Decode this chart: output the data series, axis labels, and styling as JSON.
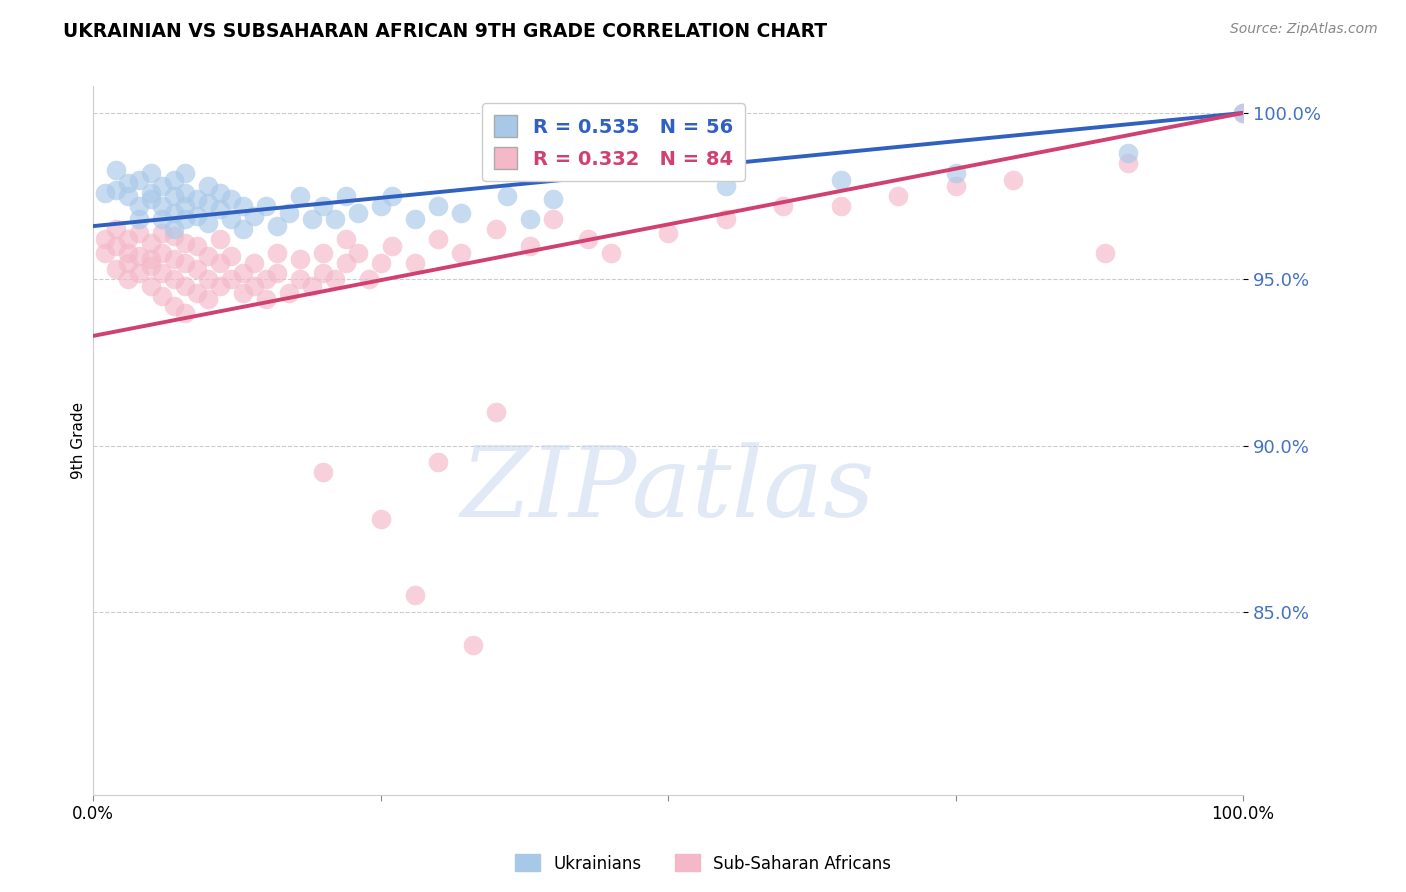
{
  "title": "UKRAINIAN VS SUBSAHARAN AFRICAN 9TH GRADE CORRELATION CHART",
  "source": "Source: ZipAtlas.com",
  "ylabel": "9th Grade",
  "xlim": [
    0.0,
    1.0
  ],
  "ylim": [
    0.795,
    1.008
  ],
  "yticks": [
    0.85,
    0.9,
    0.95,
    1.0
  ],
  "ytick_labels": [
    "85.0%",
    "90.0%",
    "95.0%",
    "100.0%"
  ],
  "blue_color": "#a8c8e8",
  "pink_color": "#f4b8c8",
  "blue_line_color": "#3060c0",
  "pink_line_color": "#d04070",
  "legend_blue_label": "R = 0.535   N = 56",
  "legend_pink_label": "R = 0.332   N = 84",
  "watermark": "ZIPatlas",
  "blue_scatter_x": [
    0.01,
    0.02,
    0.02,
    0.03,
    0.03,
    0.04,
    0.04,
    0.04,
    0.05,
    0.05,
    0.05,
    0.06,
    0.06,
    0.06,
    0.07,
    0.07,
    0.07,
    0.07,
    0.08,
    0.08,
    0.08,
    0.08,
    0.09,
    0.09,
    0.1,
    0.1,
    0.1,
    0.11,
    0.11,
    0.12,
    0.12,
    0.13,
    0.13,
    0.14,
    0.15,
    0.16,
    0.17,
    0.18,
    0.19,
    0.2,
    0.21,
    0.22,
    0.23,
    0.25,
    0.26,
    0.28,
    0.3,
    0.32,
    0.36,
    0.38,
    0.4,
    0.55,
    0.65,
    0.75,
    0.9,
    1.0
  ],
  "blue_scatter_y": [
    0.976,
    0.983,
    0.977,
    0.979,
    0.975,
    0.972,
    0.98,
    0.968,
    0.974,
    0.982,
    0.976,
    0.968,
    0.972,
    0.978,
    0.965,
    0.97,
    0.975,
    0.98,
    0.972,
    0.968,
    0.976,
    0.982,
    0.974,
    0.969,
    0.973,
    0.967,
    0.978,
    0.971,
    0.976,
    0.968,
    0.974,
    0.972,
    0.965,
    0.969,
    0.972,
    0.966,
    0.97,
    0.975,
    0.968,
    0.972,
    0.968,
    0.975,
    0.97,
    0.972,
    0.975,
    0.968,
    0.972,
    0.97,
    0.975,
    0.968,
    0.974,
    0.978,
    0.98,
    0.982,
    0.988,
    1.0
  ],
  "pink_scatter_x": [
    0.01,
    0.01,
    0.02,
    0.02,
    0.02,
    0.03,
    0.03,
    0.03,
    0.03,
    0.04,
    0.04,
    0.04,
    0.05,
    0.05,
    0.05,
    0.05,
    0.06,
    0.06,
    0.06,
    0.06,
    0.07,
    0.07,
    0.07,
    0.07,
    0.08,
    0.08,
    0.08,
    0.08,
    0.09,
    0.09,
    0.09,
    0.1,
    0.1,
    0.1,
    0.11,
    0.11,
    0.11,
    0.12,
    0.12,
    0.13,
    0.13,
    0.14,
    0.14,
    0.15,
    0.15,
    0.16,
    0.16,
    0.17,
    0.18,
    0.18,
    0.19,
    0.2,
    0.2,
    0.21,
    0.22,
    0.22,
    0.23,
    0.24,
    0.25,
    0.26,
    0.28,
    0.3,
    0.32,
    0.35,
    0.38,
    0.4,
    0.43,
    0.45,
    0.5,
    0.55,
    0.6,
    0.65,
    0.7,
    0.75,
    0.8,
    0.88,
    0.9,
    0.35,
    0.3,
    0.2,
    0.25,
    0.28,
    0.33,
    1.0
  ],
  "pink_scatter_y": [
    0.962,
    0.958,
    0.965,
    0.96,
    0.953,
    0.958,
    0.955,
    0.95,
    0.962,
    0.957,
    0.964,
    0.952,
    0.956,
    0.961,
    0.948,
    0.954,
    0.952,
    0.958,
    0.964,
    0.945,
    0.95,
    0.956,
    0.963,
    0.942,
    0.948,
    0.955,
    0.961,
    0.94,
    0.946,
    0.953,
    0.96,
    0.944,
    0.95,
    0.957,
    0.948,
    0.955,
    0.962,
    0.95,
    0.957,
    0.946,
    0.952,
    0.948,
    0.955,
    0.944,
    0.95,
    0.952,
    0.958,
    0.946,
    0.95,
    0.956,
    0.948,
    0.952,
    0.958,
    0.95,
    0.955,
    0.962,
    0.958,
    0.95,
    0.955,
    0.96,
    0.955,
    0.962,
    0.958,
    0.965,
    0.96,
    0.968,
    0.962,
    0.958,
    0.964,
    0.968,
    0.972,
    0.972,
    0.975,
    0.978,
    0.98,
    0.958,
    0.985,
    0.91,
    0.895,
    0.892,
    0.878,
    0.855,
    0.84,
    1.0
  ],
  "blue_line_x0": 0.0,
  "blue_line_y0": 0.966,
  "blue_line_x1": 1.0,
  "blue_line_y1": 1.0,
  "pink_line_x0": 0.0,
  "pink_line_y0": 0.933,
  "pink_line_x1": 1.0,
  "pink_line_y1": 1.0
}
